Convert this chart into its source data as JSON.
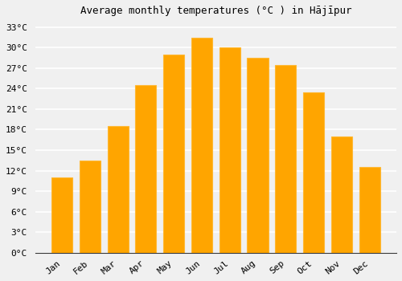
{
  "months": [
    "Jan",
    "Feb",
    "Mar",
    "Apr",
    "May",
    "Jun",
    "Jul",
    "Aug",
    "Sep",
    "Oct",
    "Nov",
    "Dec"
  ],
  "values": [
    11,
    13.5,
    18.5,
    24.5,
    29,
    31.5,
    30,
    28.5,
    27.5,
    23.5,
    17,
    12.5
  ],
  "bar_color": "#FFA500",
  "bar_edge_color": "#FFB833",
  "title": "Average monthly temperatures (°C ) in Hājīpur",
  "ylim": [
    0,
    34
  ],
  "yticks": [
    0,
    3,
    6,
    9,
    12,
    15,
    18,
    21,
    24,
    27,
    30,
    33
  ],
  "ytick_labels": [
    "0°C",
    "3°C",
    "6°C",
    "9°C",
    "12°C",
    "15°C",
    "18°C",
    "21°C",
    "24°C",
    "27°C",
    "30°C",
    "33°C"
  ],
  "background_color": "#f0f0f0",
  "grid_color": "#ffffff",
  "title_fontsize": 9,
  "tick_fontsize": 8,
  "bar_width": 0.75
}
